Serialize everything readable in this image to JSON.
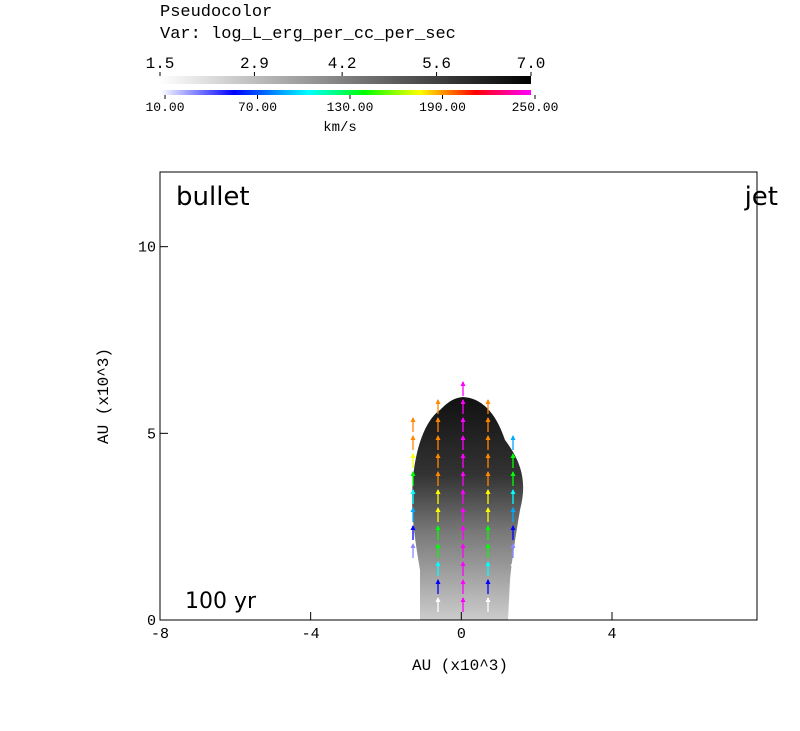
{
  "chart_data": {
    "type": "pseudocolor",
    "title": "Pseudocolor",
    "subtitle": "Var: log_L_erg_per_cc_per_sec",
    "colorbar_ticks": [
      1.5,
      2.9,
      4.2,
      5.6,
      {
        "value": 7,
        "label": "7.0"
      }
    ],
    "colorbar_lim": [
      1.5,
      7
    ],
    "vector_ticks": [
      {
        "value": 10,
        "label": "10.00"
      },
      {
        "value": 70,
        "label": "70.00"
      },
      {
        "value": 130,
        "label": "130.00"
      },
      {
        "value": 190,
        "label": "190.00"
      },
      {
        "value": 250,
        "label": "250.00"
      }
    ],
    "vector_lim": [
      10,
      250
    ],
    "vector_units": "km/s",
    "xlabel": "AU (x10^3)",
    "ylabel": "AU (x10^3)",
    "xlim": [
      -8,
      7.85
    ],
    "xticks": [
      -8,
      -4,
      0,
      4
    ],
    "ylim": [
      0,
      12
    ],
    "yticks": [
      0,
      5,
      10
    ],
    "annotations": [
      "bullet",
      "jet",
      "100 yr"
    ]
  }
}
